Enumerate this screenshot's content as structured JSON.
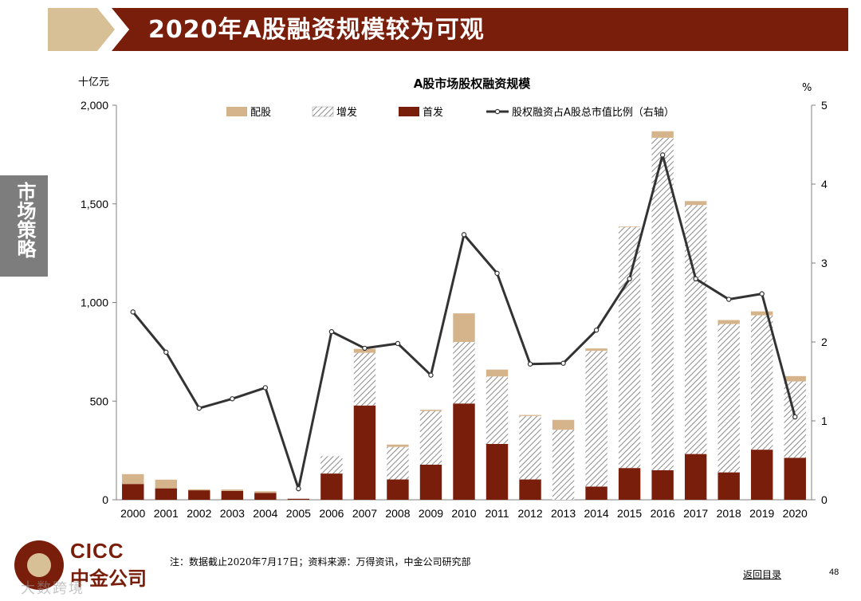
{
  "header": {
    "title": "2020年A股融资规模较为可观"
  },
  "side_tab": {
    "label": "市场策略"
  },
  "colors": {
    "brand_dark_red": "#7a1e0c",
    "brand_tan": "#d7bf96",
    "rights_issue": "#d5b48b",
    "ipo": "#7a1e0c",
    "ratio_line": "#333333",
    "side_tab_gray": "#7d7d7d"
  },
  "chart_data": {
    "type": "bar",
    "subtype": "stacked bar with line on secondary axis",
    "title": "A股市场股权融资规模",
    "ylabel": "十亿元",
    "y2label": "%",
    "ylim": [
      0,
      2000
    ],
    "y2lim": [
      0,
      5
    ],
    "yticks": [
      "0",
      "500",
      "1,000",
      "1,500",
      "2,000"
    ],
    "yticks_values": [
      0,
      500,
      1000,
      1500,
      2000
    ],
    "y2ticks": [
      "0",
      "1",
      "2",
      "3",
      "4",
      "5"
    ],
    "y2ticks_values": [
      0,
      1,
      2,
      3,
      4,
      5
    ],
    "categories": [
      "2000",
      "2001",
      "2002",
      "2003",
      "2004",
      "2005",
      "2006",
      "2007",
      "2008",
      "2009",
      "2010",
      "2011",
      "2012",
      "2013",
      "2014",
      "2015",
      "2016",
      "2017",
      "2018",
      "2019",
      "2020"
    ],
    "legend_position": "top",
    "series": [
      {
        "name": "首发",
        "kind": "bar",
        "pattern": "solid",
        "values": [
          80,
          58,
          48,
          45,
          35,
          5,
          133,
          478,
          103,
          178,
          488,
          283,
          103,
          0,
          67,
          161,
          150,
          232,
          139,
          254,
          213
        ]
      },
      {
        "name": "增发",
        "kind": "bar",
        "pattern": "hatched",
        "values": [
          0,
          0,
          0,
          0,
          0,
          0,
          88,
          267,
          165,
          272,
          312,
          342,
          322,
          355,
          688,
          1222,
          1685,
          1262,
          752,
          681,
          387
        ]
      },
      {
        "name": "配股",
        "kind": "bar",
        "pattern": "solid",
        "values": [
          50,
          44,
          5,
          7,
          8,
          0,
          0,
          20,
          12,
          6,
          145,
          35,
          5,
          50,
          12,
          3,
          33,
          20,
          20,
          20,
          27
        ]
      },
      {
        "name": "股权融资占A股总市值比例（右轴）",
        "kind": "line",
        "axis": "right",
        "values": [
          2.38,
          1.87,
          1.16,
          1.28,
          1.42,
          0.14,
          2.13,
          1.92,
          1.98,
          1.58,
          3.36,
          2.87,
          1.72,
          1.73,
          2.15,
          2.8,
          4.37,
          2.8,
          2.54,
          2.61,
          1.05
        ]
      }
    ]
  },
  "footer": {
    "logo_en": "CICC",
    "logo_cn": "中金公司",
    "note": "注：数据截止2020年7月17日；资料来源：万得资讯，中金公司研究部",
    "back_link": "返回目录",
    "page_number": "48",
    "watermark": "大数跨境"
  }
}
